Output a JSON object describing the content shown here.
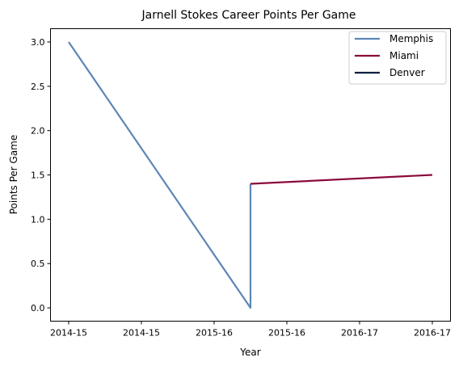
{
  "chart_data": {
    "type": "line",
    "title": "Jarnell Stokes Career Points Per Game",
    "xlabel": "Year",
    "ylabel": "Points Per Game",
    "x_ticks": [
      "2014-15",
      "2014-15",
      "2015-16",
      "2015-16",
      "2016-17",
      "2016-17"
    ],
    "ylim": [
      -0.15,
      3.15
    ],
    "y_ticks": [
      "0.0",
      "0.5",
      "1.0",
      "1.5",
      "2.0",
      "2.5",
      "3.0"
    ],
    "grid": false,
    "legend_position": "top-right",
    "series": [
      {
        "name": "Memphis",
        "color": "#5D87B5",
        "points": [
          {
            "x": 0.0,
            "y": 3.0
          },
          {
            "x": 1.0,
            "y": 0.0
          },
          {
            "x": 1.0,
            "y": 1.4
          }
        ]
      },
      {
        "name": "Miami",
        "color": "#8B0A3C",
        "points": [
          {
            "x": 1.0,
            "y": 1.4
          },
          {
            "x": 2.0,
            "y": 1.5
          }
        ]
      },
      {
        "name": "Denver",
        "color": "#0E2240",
        "points": []
      }
    ],
    "x_range": [
      -0.1,
      2.1
    ]
  }
}
